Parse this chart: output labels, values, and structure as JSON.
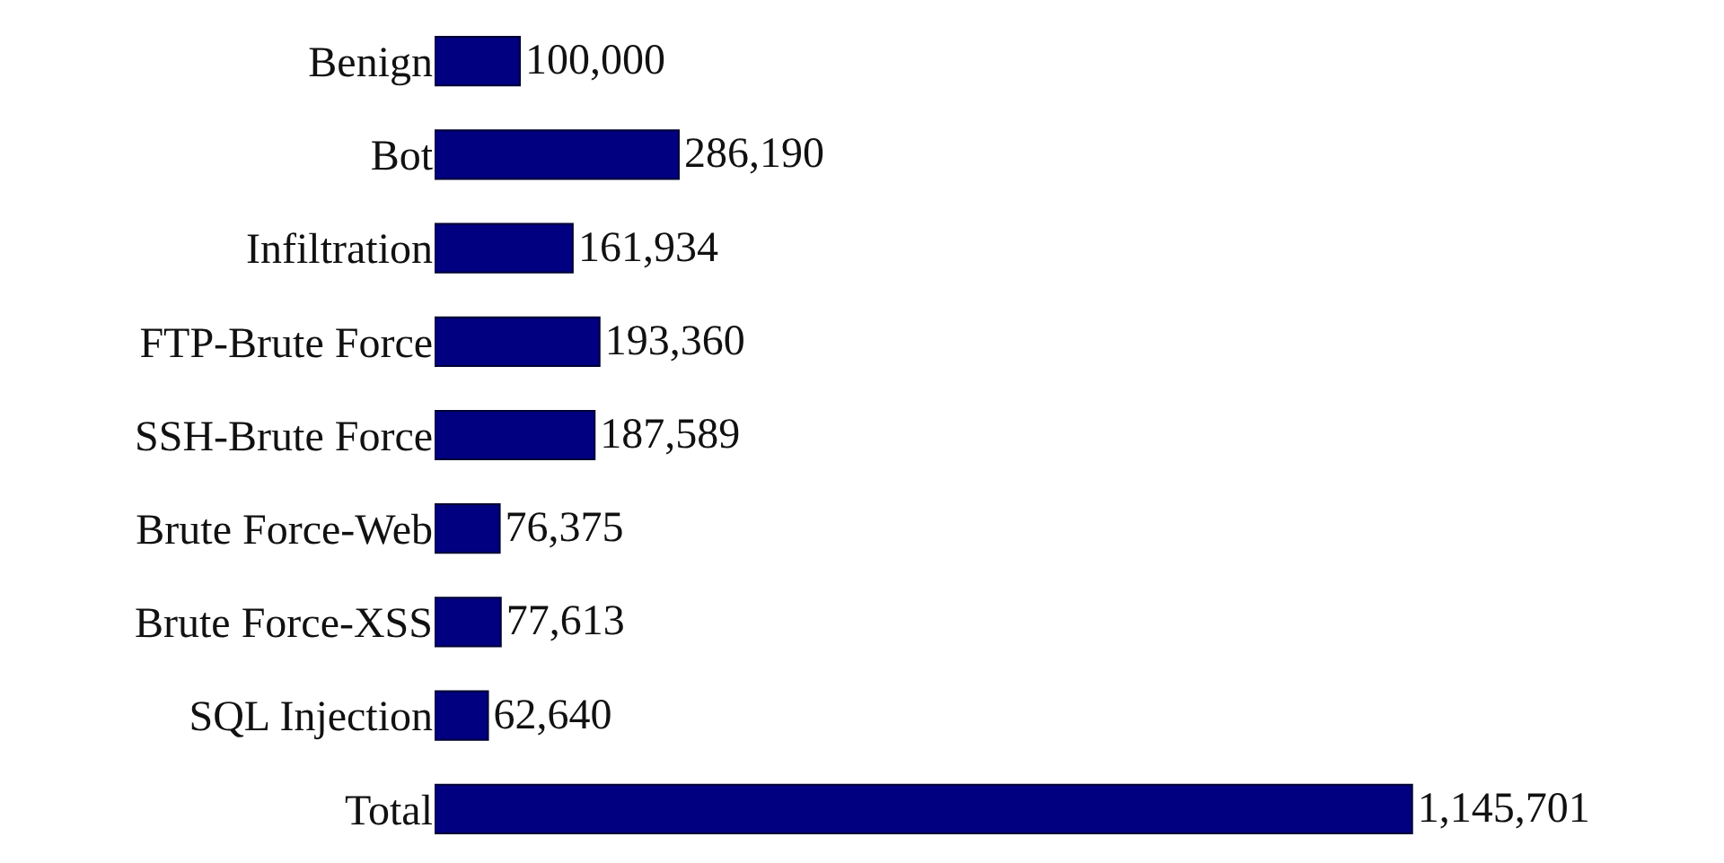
{
  "chart_data": {
    "type": "bar",
    "orientation": "horizontal",
    "categories": [
      "Benign",
      "Bot",
      "Infiltration",
      "FTP-Brute Force",
      "SSH-Brute Force",
      "Brute Force-Web",
      "Brute Force-XSS",
      "SQL Injection",
      "Total"
    ],
    "values": [
      100000,
      286190,
      161934,
      193360,
      187589,
      76375,
      77613,
      62640,
      1145701
    ],
    "value_labels": [
      "100,000",
      "286,190",
      "161,934",
      "193,360",
      "187,589",
      "76,375",
      "77,613",
      "62,640",
      "1,145,701"
    ],
    "color": "#000080",
    "grid": false,
    "legend": false
  }
}
